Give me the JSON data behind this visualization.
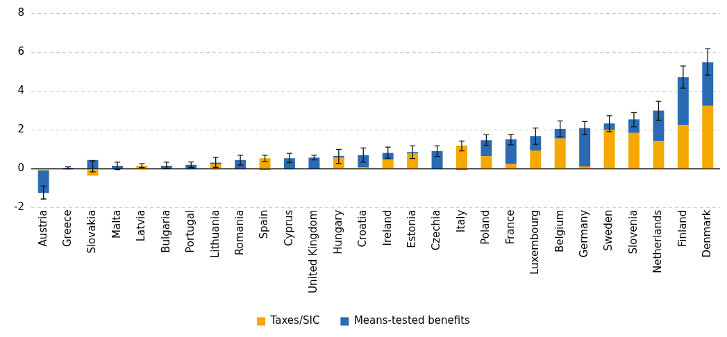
{
  "chart_data": {
    "type": "bar",
    "stacked": true,
    "categories": [
      "Austria",
      "Greece",
      "Slovakia",
      "Malta",
      "Latvia",
      "Bulgaria",
      "Portugal",
      "Lithuania",
      "Romania",
      "Spain",
      "Cyprus",
      "United Kingdom",
      "Hungary",
      "Croatia",
      "Ireland",
      "Estonia",
      "Czechia",
      "Italy",
      "Poland",
      "France",
      "Luxembourg",
      "Belgium",
      "Germany",
      "Sweden",
      "Slovenia",
      "Netherlands",
      "Finland",
      "Denmark"
    ],
    "series": [
      {
        "name": "Taxes/SIC",
        "color": "#f5a800",
        "values": [
          -0.07,
          0,
          -0.35,
          0,
          0.16,
          0,
          0,
          0.24,
          0,
          0.54,
          0,
          0,
          0.58,
          0.09,
          0.46,
          0.78,
          0,
          1.19,
          0.65,
          0.25,
          0.94,
          1.56,
          0.12,
          2.0,
          1.84,
          1.43,
          2.25,
          3.23
        ]
      },
      {
        "name": "Means-tested benefits",
        "color": "#2a6bb3",
        "values": [
          -1.17,
          0.05,
          0.45,
          0.16,
          0,
          0.16,
          0.2,
          0.08,
          0.45,
          -0.05,
          0.54,
          0.58,
          0.08,
          0.61,
          0.36,
          0.08,
          0.91,
          -0.05,
          0.82,
          1.26,
          0.74,
          0.49,
          1.97,
          0.33,
          0.7,
          1.56,
          2.46,
          2.25
        ],
        "errors": [
          [
            -1.55,
            -0.88
          ],
          [
            0.0,
            0.1
          ],
          [
            -0.16,
            0.41
          ],
          [
            -0.04,
            0.34
          ],
          [
            0.07,
            0.26
          ],
          [
            0.03,
            0.34
          ],
          [
            0.07,
            0.35
          ],
          [
            0.07,
            0.59
          ],
          [
            0.19,
            0.7
          ],
          [
            0.39,
            0.7
          ],
          [
            0.32,
            0.8
          ],
          [
            0.46,
            0.7
          ],
          [
            0.28,
            1.0
          ],
          [
            0.34,
            1.07
          ],
          [
            0.55,
            1.12
          ],
          [
            0.53,
            1.18
          ],
          [
            0.64,
            1.18
          ],
          [
            0.92,
            1.43
          ],
          [
            1.2,
            1.75
          ],
          [
            1.23,
            1.77
          ],
          [
            1.26,
            2.1
          ],
          [
            1.65,
            2.46
          ],
          [
            1.75,
            2.43
          ],
          [
            1.91,
            2.73
          ],
          [
            2.16,
            2.89
          ],
          [
            2.5,
            3.47
          ],
          [
            4.15,
            5.29
          ],
          [
            4.82,
            6.17
          ]
        ]
      }
    ],
    "ylim": [
      -2,
      8
    ],
    "yticks": [
      -2,
      0,
      2,
      4,
      6,
      8
    ],
    "grid": "y",
    "legend": "bottom"
  }
}
